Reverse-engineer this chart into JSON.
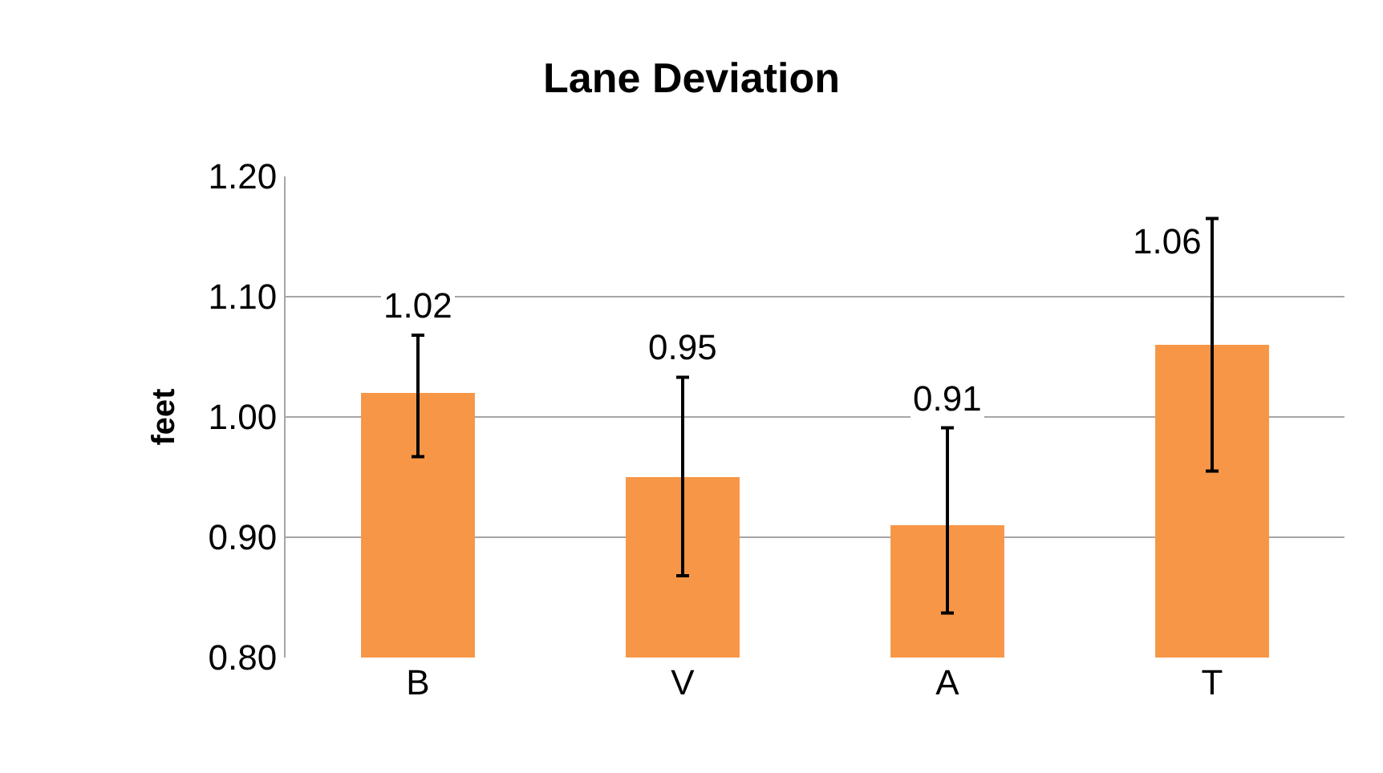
{
  "chart_data": {
    "type": "bar",
    "title": "Lane Deviation",
    "ylabel": "feet",
    "categories": [
      "B",
      "V",
      "A",
      "T"
    ],
    "values": [
      1.02,
      0.95,
      0.91,
      1.06
    ],
    "errors": [
      [
        0.967,
        1.068
      ],
      [
        0.868,
        1.033
      ],
      [
        0.837,
        0.991
      ],
      [
        0.955,
        1.165
      ]
    ],
    "color": "#f79646",
    "data_labels": true,
    "ylim": [
      0.8,
      1.2
    ],
    "yticks": [
      {
        "value": 0.8,
        "label": "0.80"
      },
      {
        "value": 0.9,
        "label": "0.90"
      },
      {
        "value": 1.0,
        "label": "1.00"
      },
      {
        "value": 1.1,
        "label": "1.10"
      },
      {
        "value": 1.2,
        "label": "1.20"
      }
    ],
    "grid": "y",
    "legend": false
  }
}
